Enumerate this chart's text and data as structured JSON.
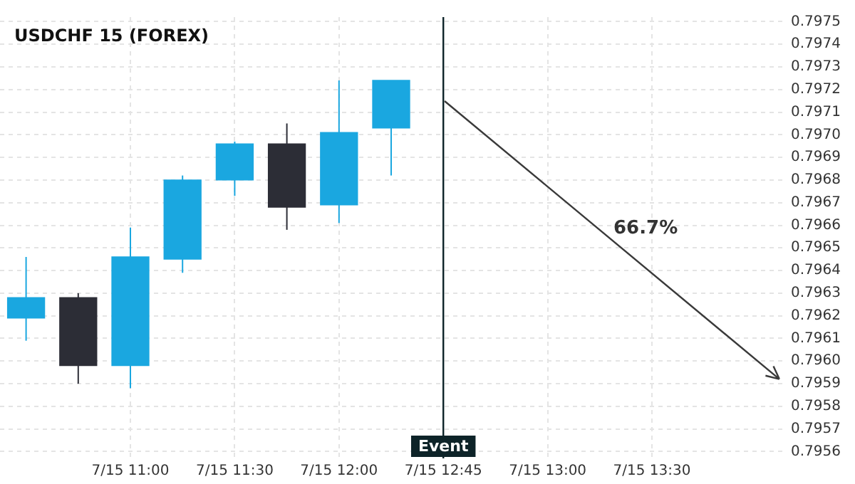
{
  "chart_data": {
    "type": "candlestick",
    "title": "USDCHF 15 (FOREX)",
    "categories": [
      null,
      null,
      "7/15 11:00",
      null,
      "7/15 11:30",
      null,
      "7/15 12:00",
      null,
      "7/15 12:45",
      null,
      "7/15 13:00",
      null,
      "7/15 13:30",
      null,
      null
    ],
    "ohlc": [
      [
        0.79619,
        0.79646,
        0.79609,
        0.79628
      ],
      [
        0.79628,
        0.7963,
        0.7959,
        0.79598
      ],
      [
        0.79598,
        0.79659,
        0.79588,
        0.79646
      ],
      [
        0.79645,
        0.79682,
        0.79639,
        0.7968
      ],
      [
        0.7968,
        0.79697,
        0.79673,
        0.79696
      ],
      [
        0.79696,
        0.79705,
        0.79658,
        0.79668
      ],
      [
        0.79669,
        0.79724,
        0.79661,
        0.79701
      ],
      [
        0.79703,
        0.79724,
        0.79682,
        0.79724
      ],
      null,
      null,
      null,
      null,
      null,
      null,
      null
    ],
    "colors": [
      "#1aa7e0",
      "#2c2d36",
      "#1aa7e0",
      "#1aa7e0",
      "#1aa7e0",
      "#2c2d36",
      "#1aa7e0",
      "#1aa7e0",
      null,
      null,
      null,
      null,
      null,
      null,
      null
    ],
    "ref_lines": [
      {
        "axis": "x",
        "value": "7/15 12:45",
        "label": "Event",
        "color": "#0d2328"
      }
    ],
    "annotations": [
      "66.7%"
    ],
    "ylim": [
      0.79557,
      0.79752
    ],
    "yticks": [
      0.7956,
      0.7957,
      0.7958,
      0.7959,
      {
        "value": 0.796,
        "label": "0.7960"
      },
      0.7961,
      0.7962,
      0.7963,
      0.7964,
      0.7965,
      0.7966,
      0.7967,
      0.7968,
      0.7969,
      {
        "value": 0.797,
        "label": "0.7970"
      },
      0.7971,
      0.7972,
      0.7973,
      0.7974,
      0.7975
    ],
    "grid": true,
    "legend": false
  }
}
